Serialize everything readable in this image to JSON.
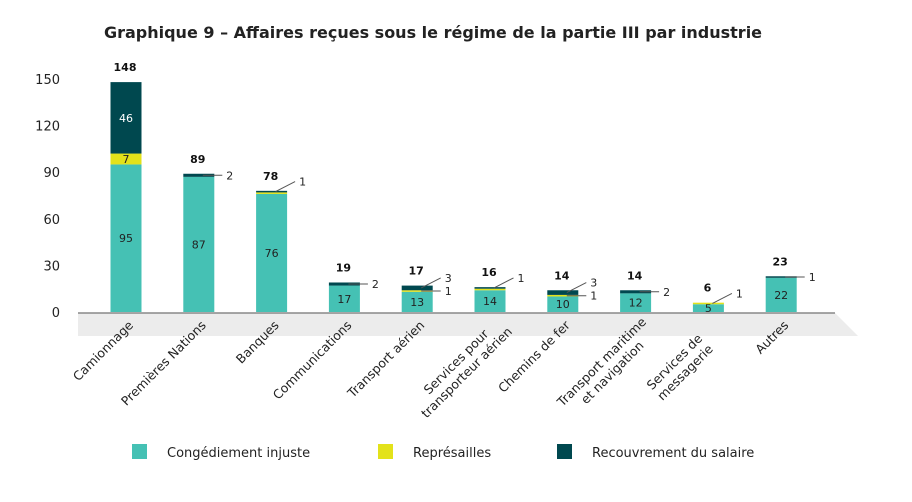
{
  "chart_data": {
    "type": "bar",
    "stacked": true,
    "title": "Graphique 9 – Affaires reçues sous le régime de la partie III par industrie",
    "xlabel": "",
    "ylabel": "",
    "ylim": [
      0,
      150
    ],
    "yticks": [
      0,
      30,
      60,
      90,
      120,
      150
    ],
    "grid": false,
    "legend": "bottom",
    "categories": [
      [
        "Camionnage"
      ],
      [
        "Premières Nations"
      ],
      [
        "Banques"
      ],
      [
        "Communications"
      ],
      [
        "Transport aérien"
      ],
      [
        "Services pour",
        "transporteur aérien"
      ],
      [
        "Chemins de fer"
      ],
      [
        "Transport maritime",
        "et navigation"
      ],
      [
        "Services de",
        "messagerie"
      ],
      [
        "Autres"
      ]
    ],
    "totals": [
      148,
      89,
      78,
      19,
      17,
      16,
      14,
      14,
      6,
      23
    ],
    "series": [
      {
        "name": "Congédiement injuste",
        "color": "#45c1b4",
        "values": [
          95,
          87,
          76,
          17,
          13,
          14,
          10,
          12,
          5,
          22
        ],
        "labels": [
          "95",
          "87",
          "76",
          "17",
          "13",
          "14",
          "10",
          "12",
          "5",
          "22"
        ]
      },
      {
        "name": "Représailles",
        "color": "#e3e21a",
        "values": [
          7,
          0,
          1,
          0,
          1,
          1,
          1,
          0,
          1,
          0
        ],
        "labels": [
          "7",
          null,
          null,
          null,
          "1",
          null,
          "1",
          null,
          "1",
          null
        ]
      },
      {
        "name": "Recouvrement du salaire",
        "color": "#00484f",
        "values": [
          46,
          2,
          1,
          2,
          3,
          1,
          3,
          2,
          0,
          1
        ],
        "labels": [
          "46",
          "2",
          "1",
          "2",
          "3",
          "1",
          "3",
          "2",
          null,
          "1"
        ]
      }
    ]
  }
}
